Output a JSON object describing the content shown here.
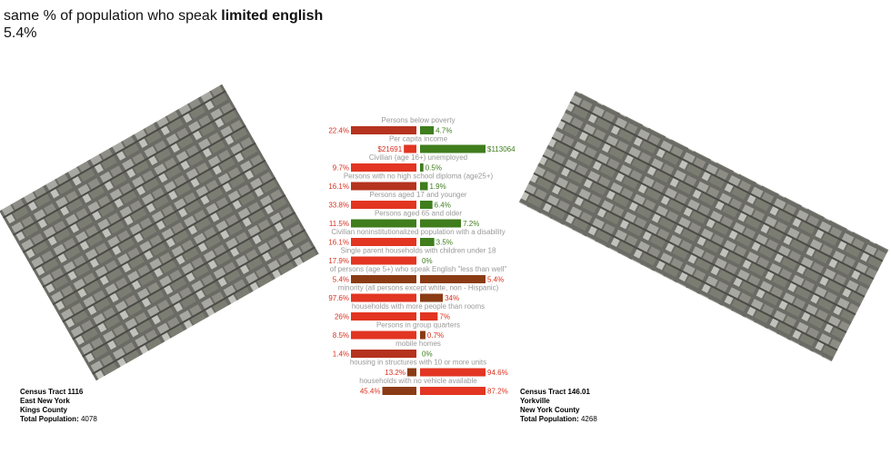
{
  "header": {
    "prefix": "same % of population who speak",
    "emphasis": "limited english",
    "value": "5.4%"
  },
  "left_tract": {
    "name": "Census Tract 1116",
    "place": "East New York",
    "county": "Kings County",
    "population_label": "Total Population:",
    "population": "4078"
  },
  "right_tract": {
    "name": "Census Tract 146.01",
    "place": "Yorkville",
    "county": "New York County",
    "population_label": "Total Population:",
    "population": "4268"
  },
  "rows": [
    {
      "label": "Persons below poverty",
      "left": {
        "value": 22.4,
        "label": "22.4%",
        "color": "#b5331f"
      },
      "right": {
        "value": 4.7,
        "label": "4.7%",
        "color": "#3f7d1d"
      }
    },
    {
      "label": "Per capita income",
      "left": {
        "value": 21691,
        "label": "$21691",
        "color": "#e23522"
      },
      "right": {
        "value": 113064,
        "label": "$113064",
        "color": "#3f7d1d"
      }
    },
    {
      "label": "Civilian (age 16+) unemployed",
      "left": {
        "value": 9.7,
        "label": "9.7%",
        "color": "#e23522"
      },
      "right": {
        "value": 0.5,
        "label": "0.5%",
        "color": "#3f7d1d"
      }
    },
    {
      "label": "Persons with no high school diploma (age25+)",
      "left": {
        "value": 16.1,
        "label": "16.1%",
        "color": "#b5331f"
      },
      "right": {
        "value": 1.9,
        "label": "1.9%",
        "color": "#3f7d1d"
      }
    },
    {
      "label": "Persons aged 17 and younger",
      "left": {
        "value": 33.8,
        "label": "33.8%",
        "color": "#e23522"
      },
      "right": {
        "value": 6.4,
        "label": "6.4%",
        "color": "#3f7d1d"
      }
    },
    {
      "label": "Persons aged 65 and older",
      "left": {
        "value": 11.5,
        "label": "11.5%",
        "color": "#3f7d1d"
      },
      "right": {
        "value": 7.2,
        "label": "7.2%",
        "color": "#3f7d1d"
      }
    },
    {
      "label": "Civilian noninstitutionalized population with a disability",
      "left": {
        "value": 16.1,
        "label": "16.1%",
        "color": "#e23522"
      },
      "right": {
        "value": 3.5,
        "label": "3.5%",
        "color": "#3f7d1d"
      }
    },
    {
      "label": "Single parent households with children under 18",
      "left": {
        "value": 17.9,
        "label": "17.9%",
        "color": "#e23522"
      },
      "right": {
        "value": 0,
        "label": "0%",
        "color": "#3f7d1d"
      }
    },
    {
      "label": "of persons (age 5+) who speak English \"less than well\"",
      "left": {
        "value": 5.4,
        "label": "5.4%",
        "color": "#8a3b14"
      },
      "right": {
        "value": 5.4,
        "label": "5.4%",
        "color": "#8a3b14"
      }
    },
    {
      "label": "minority (all persons except white, non - Hispanic)",
      "left": {
        "value": 97.6,
        "label": "97.6%",
        "color": "#e23522"
      },
      "right": {
        "value": 34,
        "label": "34%",
        "color": "#8a3b14"
      }
    },
    {
      "label": "households with more people than rooms",
      "left": {
        "value": 26,
        "label": "26%",
        "color": "#e23522"
      },
      "right": {
        "value": 7,
        "label": "7%",
        "color": "#e23522"
      }
    },
    {
      "label": "Persons in group quarters",
      "left": {
        "value": 8.5,
        "label": "8.5%",
        "color": "#e23522"
      },
      "right": {
        "value": 0.7,
        "label": "0.7%",
        "color": "#8a3b14"
      }
    },
    {
      "label": "mobile homes",
      "left": {
        "value": 1.4,
        "label": "1.4%",
        "color": "#b5331f"
      },
      "right": {
        "value": 0,
        "label": "0%",
        "color": "#3f7d1d"
      }
    },
    {
      "label": "housing in structures with 10 or more units",
      "left": {
        "value": 13.2,
        "label": "13.2%",
        "color": "#8a3b14"
      },
      "right": {
        "value": 94.6,
        "label": "94.6%",
        "color": "#e23522"
      }
    },
    {
      "label": "households with no vehicle available",
      "left": {
        "value": 45.4,
        "label": "45.4%",
        "color": "#8a3b14"
      },
      "right": {
        "value": 87.2,
        "label": "87.2%",
        "color": "#e23522"
      }
    }
  ]
}
